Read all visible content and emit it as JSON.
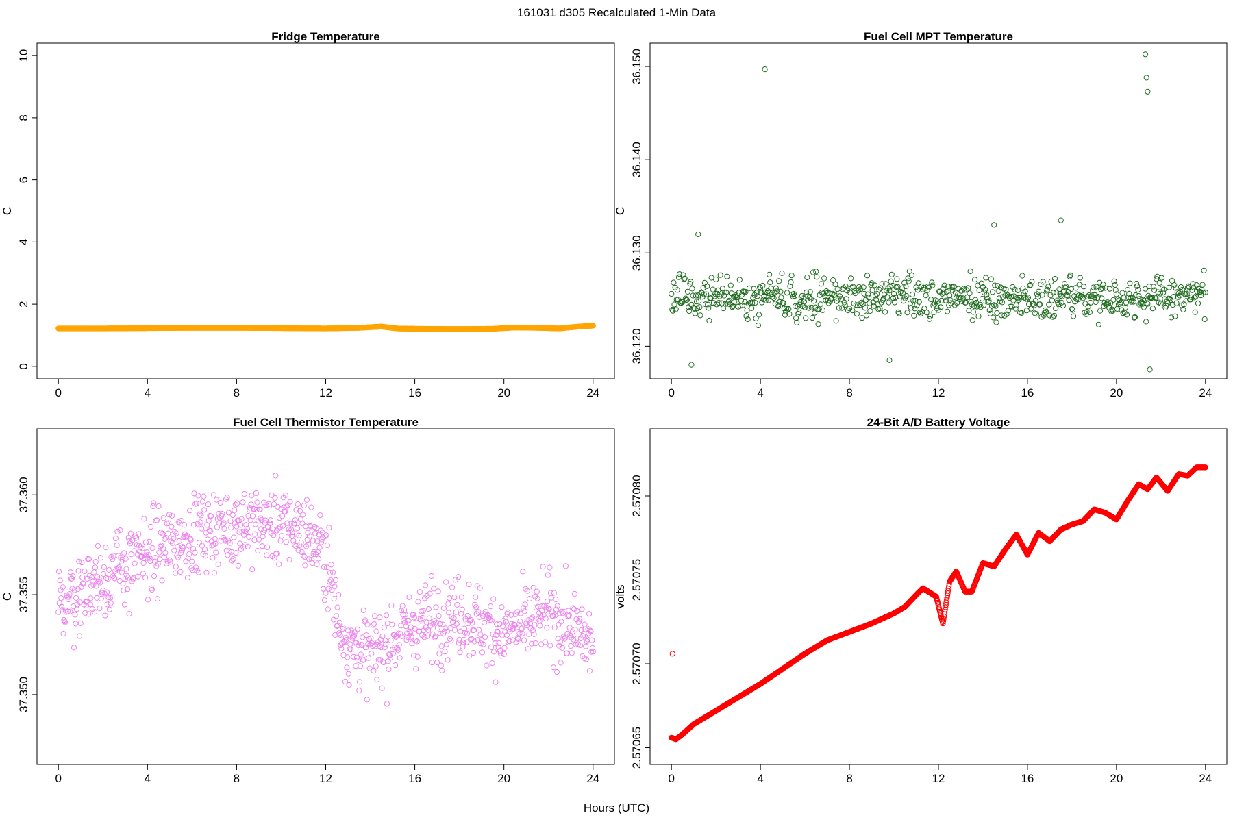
{
  "figure": {
    "suptitle": "161031   d305   Recalculated 1-Min Data",
    "xlabel": "Hours (UTC)"
  },
  "chart_data": [
    {
      "type": "scatter",
      "title": "Fridge Temperature",
      "xlabel": "",
      "ylabel": "C",
      "xlim": [
        -0.96,
        24.96
      ],
      "ylim": [
        -0.4,
        10.4
      ],
      "xticks": [
        0,
        4,
        8,
        12,
        16,
        20,
        24
      ],
      "xtick_labels": [
        "0",
        "4",
        "8",
        "12",
        "16",
        "20",
        "24"
      ],
      "yticks": [
        0,
        2,
        4,
        6,
        8,
        10
      ],
      "ytick_labels": [
        "0",
        "2",
        "4",
        "6",
        "8",
        "10"
      ],
      "series": [
        {
          "color": "#FFA500",
          "sampling": "1-min",
          "x": [
            0,
            2,
            4,
            6,
            8,
            10,
            12,
            13.5,
            14.5,
            15.2,
            16,
            18,
            19.5,
            20.5,
            21.5,
            22.5,
            23.2,
            24
          ],
          "y": [
            1.22,
            1.22,
            1.23,
            1.24,
            1.24,
            1.23,
            1.22,
            1.24,
            1.28,
            1.22,
            1.21,
            1.2,
            1.21,
            1.25,
            1.24,
            1.22,
            1.27,
            1.31
          ]
        }
      ],
      "grid": false
    },
    {
      "type": "scatter",
      "title": "Fuel Cell MPT Temperature",
      "xlabel": "",
      "ylabel": "C",
      "xlim": [
        -0.96,
        24.96
      ],
      "ylim": [
        36.1165,
        36.1525
      ],
      "xticks": [
        0,
        4,
        8,
        12,
        16,
        20,
        24
      ],
      "xtick_labels": [
        "0",
        "4",
        "8",
        "12",
        "16",
        "20",
        "24"
      ],
      "yticks": [
        36.12,
        36.13,
        36.14,
        36.15
      ],
      "ytick_labels": [
        "36.120",
        "36.130",
        "36.140",
        "36.150"
      ],
      "series": [
        {
          "color": "#1E6B1E",
          "sampling": "1-min",
          "center": 36.1252,
          "spread": 0.0017,
          "x": [
            4.2,
            21.3,
            21.35,
            21.4,
            0.9,
            9.8,
            21.5,
            17.5,
            14.5,
            1.2
          ],
          "y": [
            36.1497,
            36.1513,
            36.1488,
            36.1473,
            36.118,
            36.1185,
            36.1175,
            36.1335,
            36.133,
            36.132
          ]
        }
      ],
      "grid": false
    },
    {
      "type": "scatter",
      "title": "Fuel Cell Thermistor Temperature",
      "xlabel": "",
      "ylabel": "C",
      "xlim": [
        -0.96,
        24.96
      ],
      "ylim": [
        37.3465,
        37.3633
      ],
      "xticks": [
        0,
        4,
        8,
        12,
        16,
        20,
        24
      ],
      "xtick_labels": [
        "0",
        "4",
        "8",
        "12",
        "16",
        "20",
        "24"
      ],
      "yticks": [
        37.35,
        37.355,
        37.36
      ],
      "ytick_labels": [
        "37.350",
        "37.355",
        "37.360"
      ],
      "series": [
        {
          "color": "#EE82EE",
          "sampling": "1-min",
          "x": [
            0,
            2,
            4,
            6,
            8,
            10,
            11,
            12,
            12.6,
            13,
            14,
            16,
            18,
            20,
            22,
            24
          ],
          "y": [
            37.3545,
            37.3558,
            37.357,
            37.358,
            37.3585,
            37.3585,
            37.3582,
            37.357,
            37.3535,
            37.3525,
            37.352,
            37.3535,
            37.354,
            37.353,
            37.354,
            37.3525
          ],
          "spread": 0.0018
        }
      ],
      "grid": false
    },
    {
      "type": "scatter",
      "title": "24-Bit A/D Battery Voltage",
      "xlabel": "",
      "ylabel": "volts",
      "xlim": [
        -0.96,
        24.96
      ],
      "ylim": [
        2.57064,
        2.57084
      ],
      "xticks": [
        0,
        4,
        8,
        12,
        16,
        20,
        24
      ],
      "xtick_labels": [
        "0",
        "4",
        "8",
        "12",
        "16",
        "20",
        "24"
      ],
      "yticks": [
        2.57065,
        2.5707,
        2.57075,
        2.5708
      ],
      "ytick_labels": [
        "2.57065",
        "2.57070",
        "2.57075",
        "2.57080"
      ],
      "series": [
        {
          "color": "#FF0000",
          "sampling": "1-min",
          "x": [
            0,
            0.2,
            0.5,
            1,
            2,
            3,
            4,
            5,
            6,
            7,
            8,
            9,
            10,
            10.5,
            11,
            11.3,
            11.9,
            12.2,
            12.5,
            12.8,
            13.2,
            13.5,
            14,
            14.5,
            15,
            15.5,
            16,
            16.5,
            17,
            17.5,
            18,
            18.5,
            19,
            19.5,
            20,
            20.5,
            21,
            21.4,
            21.8,
            22.3,
            22.8,
            23.2,
            23.6,
            24
          ],
          "y": [
            2.570656,
            2.570655,
            2.570658,
            2.570664,
            2.570672,
            2.57068,
            2.570688,
            2.570697,
            2.570706,
            2.570714,
            2.570719,
            2.570724,
            2.57073,
            2.570734,
            2.570741,
            2.570745,
            2.57074,
            2.570724,
            2.570749,
            2.570755,
            2.570743,
            2.570743,
            2.57076,
            2.570758,
            2.570768,
            2.570777,
            2.570765,
            2.570778,
            2.570773,
            2.57078,
            2.570783,
            2.570785,
            2.570792,
            2.57079,
            2.570786,
            2.570797,
            2.570807,
            2.570804,
            2.570811,
            2.570803,
            2.570813,
            2.570812,
            2.570817,
            2.570817
          ]
        },
        {
          "color": "#FF0000",
          "sampling": "single",
          "x": [
            0.05
          ],
          "y": [
            2.570706
          ]
        }
      ],
      "grid": false
    }
  ]
}
